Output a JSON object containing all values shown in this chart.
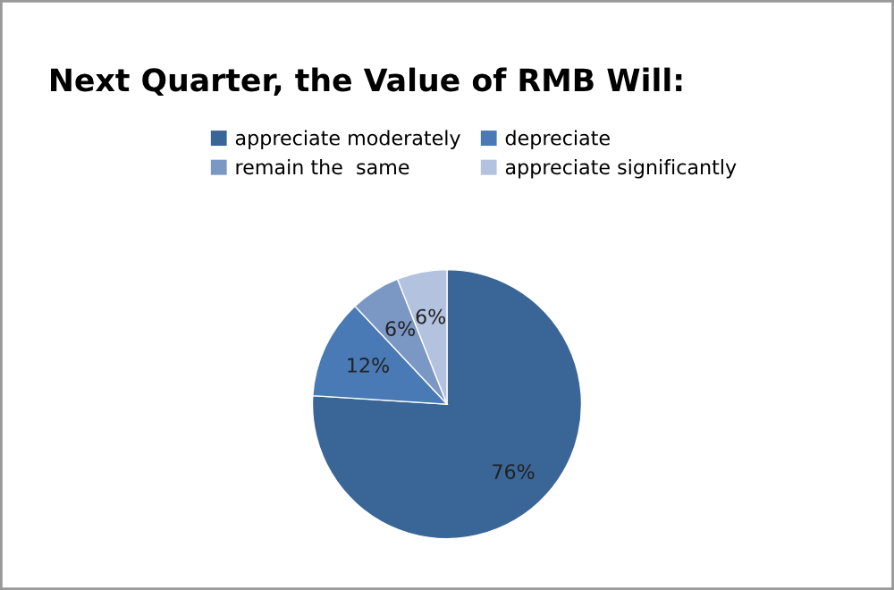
{
  "chart_data": {
    "type": "pie",
    "title": "Next Quarter, the Value of RMB Will:",
    "categories": [
      "appreciate moderately",
      "depreciate",
      "remain the  same",
      "appreciate significantly"
    ],
    "values": [
      76,
      12,
      6,
      6
    ],
    "colors": [
      "#3a6597",
      "#4a7ab5",
      "#7b97c4",
      "#b3c2de"
    ],
    "value_labels": [
      "76%",
      "12%",
      "6%",
      "6%"
    ],
    "legend": "top"
  }
}
